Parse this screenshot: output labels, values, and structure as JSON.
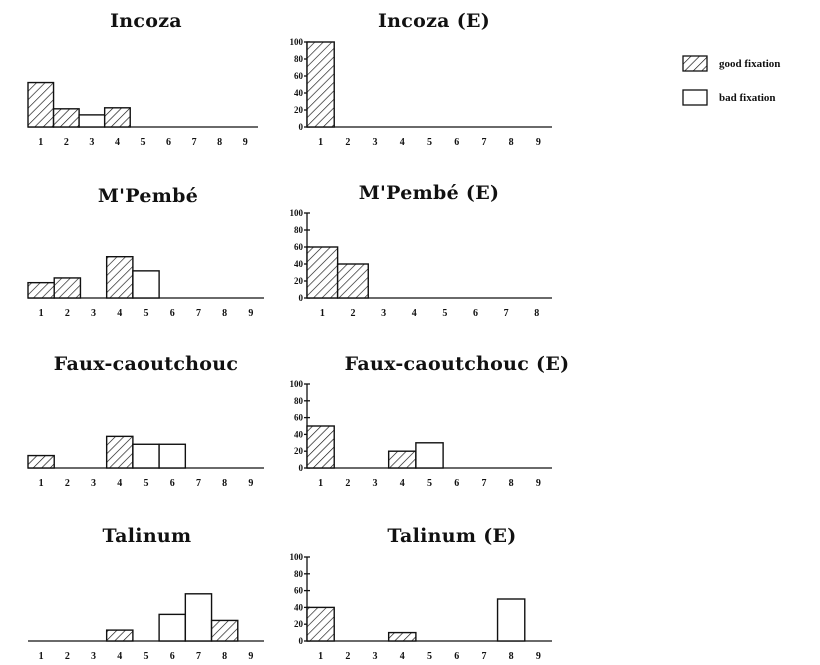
{
  "legend": {
    "good": {
      "label": "good fixation",
      "pattern": "hatched"
    },
    "bad": {
      "label": "bad fixation",
      "pattern": "empty"
    }
  },
  "colors": {
    "ink": "#111111",
    "background": "#ffffff"
  },
  "chart_data": [
    {
      "id": "incoza",
      "type": "bar",
      "title": "Incoza",
      "yaxis_visible": false,
      "categories": [
        "1",
        "2",
        "3",
        "4",
        "5",
        "6",
        "7",
        "8",
        "9"
      ],
      "values": [
        44,
        18,
        12,
        19,
        0,
        0,
        0,
        0,
        0
      ],
      "fixation": [
        "good",
        "good",
        "bad",
        "good",
        "bad",
        "bad",
        "bad",
        "bad",
        "bad"
      ],
      "ylim": [
        0,
        100
      ]
    },
    {
      "id": "incoza-e",
      "type": "bar",
      "title": "Incoza (E)",
      "yaxis_visible": true,
      "yticks": [
        0,
        20,
        40,
        60,
        80,
        100
      ],
      "categories": [
        "1",
        "2",
        "3",
        "4",
        "5",
        "6",
        "7",
        "8",
        "9"
      ],
      "values": [
        100,
        0,
        0,
        0,
        0,
        0,
        0,
        0,
        0
      ],
      "fixation": [
        "good",
        "good",
        "good",
        "good",
        "good",
        "good",
        "good",
        "good",
        "good"
      ],
      "ylim": [
        0,
        100
      ]
    },
    {
      "id": "mpembe",
      "type": "bar",
      "title": "M'Pembé",
      "yaxis_visible": false,
      "categories": [
        "1",
        "2",
        "3",
        "4",
        "5",
        "6",
        "7",
        "8",
        "9"
      ],
      "values": [
        13,
        17,
        0,
        35,
        23,
        0,
        0,
        0,
        0
      ],
      "fixation": [
        "good",
        "good",
        "bad",
        "good",
        "bad",
        "bad",
        "bad",
        "bad",
        "bad"
      ],
      "ylim": [
        0,
        100
      ]
    },
    {
      "id": "mpembe-e",
      "type": "bar",
      "title": "M'Pembé (E)",
      "yaxis_visible": true,
      "yticks": [
        0,
        20,
        40,
        60,
        80,
        100
      ],
      "categories": [
        "1",
        "2",
        "3",
        "4",
        "5",
        "6",
        "7",
        "8"
      ],
      "values": [
        60,
        40,
        0,
        0,
        0,
        0,
        0,
        0
      ],
      "fixation": [
        "good",
        "good",
        "good",
        "good",
        "good",
        "good",
        "good",
        "good"
      ],
      "ylim": [
        0,
        100
      ]
    },
    {
      "id": "faux-caoutchouc",
      "type": "bar",
      "title": "Faux-caoutchouc",
      "yaxis_visible": false,
      "categories": [
        "1",
        "2",
        "3",
        "4",
        "5",
        "6",
        "7",
        "8",
        "9"
      ],
      "values": [
        11,
        0,
        0,
        28,
        21,
        21,
        0,
        0,
        0
      ],
      "fixation": [
        "good",
        "good",
        "good",
        "good",
        "bad",
        "bad",
        "bad",
        "bad",
        "bad"
      ],
      "ylim": [
        0,
        100
      ]
    },
    {
      "id": "faux-caoutchouc-e",
      "type": "bar",
      "title": "Faux-caoutchouc (E)",
      "yaxis_visible": true,
      "yticks": [
        0,
        20,
        40,
        60,
        80,
        100
      ],
      "categories": [
        "1",
        "2",
        "3",
        "4",
        "5",
        "6",
        "7",
        "8",
        "9"
      ],
      "values": [
        50,
        0,
        0,
        20,
        30,
        0,
        0,
        0,
        0
      ],
      "fixation": [
        "good",
        "good",
        "good",
        "good",
        "bad",
        "bad",
        "bad",
        "bad",
        "bad"
      ],
      "ylim": [
        0,
        100
      ]
    },
    {
      "id": "talinum",
      "type": "bar",
      "title": "Talinum",
      "yaxis_visible": false,
      "categories": [
        "1",
        "2",
        "3",
        "4",
        "5",
        "6",
        "7",
        "8",
        "9"
      ],
      "values": [
        0,
        0,
        0,
        9,
        0,
        22,
        39,
        17,
        0
      ],
      "fixation": [
        "good",
        "good",
        "good",
        "good",
        "good",
        "bad",
        "bad",
        "good",
        "good"
      ],
      "ylim": [
        0,
        100
      ],
      "note": ""
    },
    {
      "id": "talinum-e",
      "type": "bar",
      "title": "Talinum (E)",
      "yaxis_visible": true,
      "yticks": [
        0,
        20,
        40,
        60,
        80,
        100
      ],
      "categories": [
        "1",
        "2",
        "3",
        "4",
        "5",
        "6",
        "7",
        "8",
        "9"
      ],
      "values": [
        40,
        0,
        0,
        10,
        0,
        0,
        0,
        50,
        0
      ],
      "fixation": [
        "good",
        "good",
        "good",
        "good",
        "good",
        "good",
        "good",
        "bad",
        "good"
      ],
      "ylim": [
        0,
        100
      ]
    }
  ]
}
